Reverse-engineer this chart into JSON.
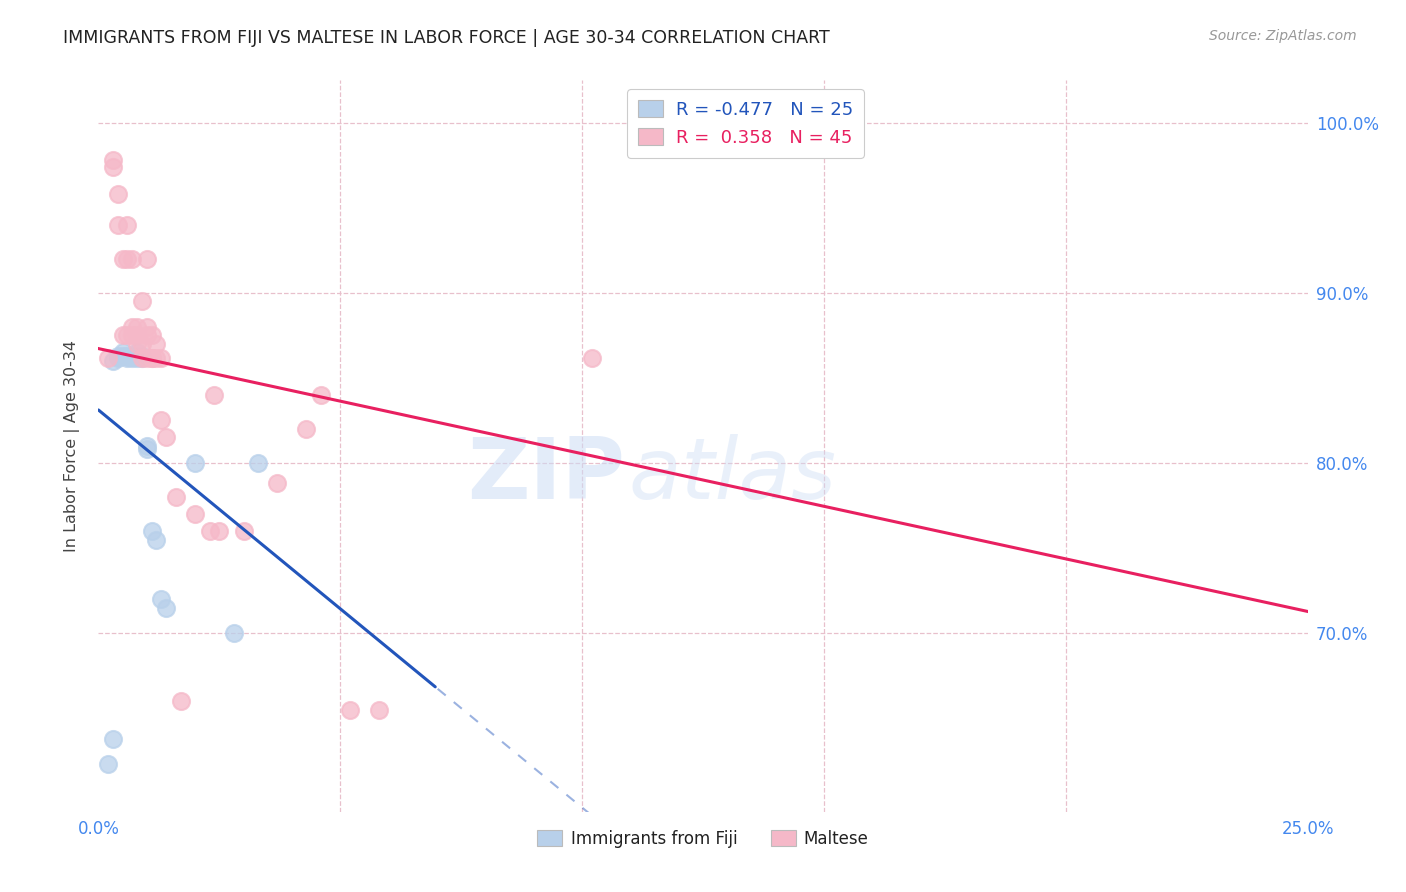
{
  "title": "IMMIGRANTS FROM FIJI VS MALTESE IN LABOR FORCE | AGE 30-34 CORRELATION CHART",
  "source": "Source: ZipAtlas.com",
  "ylabel": "In Labor Force | Age 30-34",
  "xlim": [
    0.0,
    0.25
  ],
  "ylim": [
    0.595,
    1.025
  ],
  "xticks": [
    0.0,
    0.05,
    0.1,
    0.15,
    0.2,
    0.25
  ],
  "xticklabels": [
    "0.0%",
    "",
    "",
    "",
    "",
    "25.0%"
  ],
  "yticks": [
    0.7,
    0.8,
    0.9,
    1.0
  ],
  "yticklabels": [
    "70.0%",
    "80.0%",
    "90.0%",
    "100.0%"
  ],
  "fiji_color": "#b8d0ea",
  "maltese_color": "#f5b8c8",
  "fiji_line_color": "#2255bb",
  "maltese_line_color": "#e82060",
  "legend_R_fiji": "-0.477",
  "legend_N_fiji": "25",
  "legend_R_maltese": "0.358",
  "legend_N_maltese": "45",
  "fiji_x": [
    0.002,
    0.003,
    0.003,
    0.004,
    0.004,
    0.005,
    0.005,
    0.006,
    0.006,
    0.007,
    0.007,
    0.008,
    0.008,
    0.008,
    0.009,
    0.009,
    0.01,
    0.01,
    0.011,
    0.012,
    0.013,
    0.014,
    0.02,
    0.028,
    0.033
  ],
  "fiji_y": [
    0.623,
    0.638,
    0.86,
    0.862,
    0.863,
    0.863,
    0.865,
    0.862,
    0.863,
    0.862,
    0.863,
    0.862,
    0.863,
    0.865,
    0.862,
    0.863,
    0.81,
    0.808,
    0.76,
    0.755,
    0.72,
    0.715,
    0.8,
    0.7,
    0.8
  ],
  "maltese_x": [
    0.002,
    0.003,
    0.003,
    0.004,
    0.004,
    0.005,
    0.005,
    0.006,
    0.006,
    0.006,
    0.007,
    0.007,
    0.007,
    0.008,
    0.008,
    0.008,
    0.009,
    0.009,
    0.009,
    0.01,
    0.01,
    0.01,
    0.01,
    0.011,
    0.011,
    0.011,
    0.012,
    0.012,
    0.013,
    0.013,
    0.014,
    0.016,
    0.017,
    0.02,
    0.023,
    0.024,
    0.025,
    0.03,
    0.037,
    0.043,
    0.046,
    0.052,
    0.058,
    0.102,
    0.125
  ],
  "maltese_y": [
    0.862,
    0.978,
    0.974,
    0.94,
    0.958,
    0.92,
    0.875,
    0.94,
    0.875,
    0.92,
    0.875,
    0.88,
    0.92,
    0.87,
    0.875,
    0.88,
    0.862,
    0.87,
    0.895,
    0.862,
    0.875,
    0.88,
    0.92,
    0.862,
    0.862,
    0.875,
    0.862,
    0.87,
    0.862,
    0.825,
    0.815,
    0.78,
    0.66,
    0.77,
    0.76,
    0.84,
    0.76,
    0.76,
    0.788,
    0.82,
    0.84,
    0.655,
    0.655,
    0.862,
    1.0
  ],
  "fiji_line_x_solid_end": 0.07,
  "watermark_zip": "ZIP",
  "watermark_atlas": "atlas",
  "background_color": "#ffffff",
  "grid_color": "#e8c0cc",
  "title_color": "#222222",
  "axis_label_color": "#444444",
  "tick_color": "#4488ee",
  "figsize": [
    14.06,
    8.92
  ],
  "dpi": 100
}
